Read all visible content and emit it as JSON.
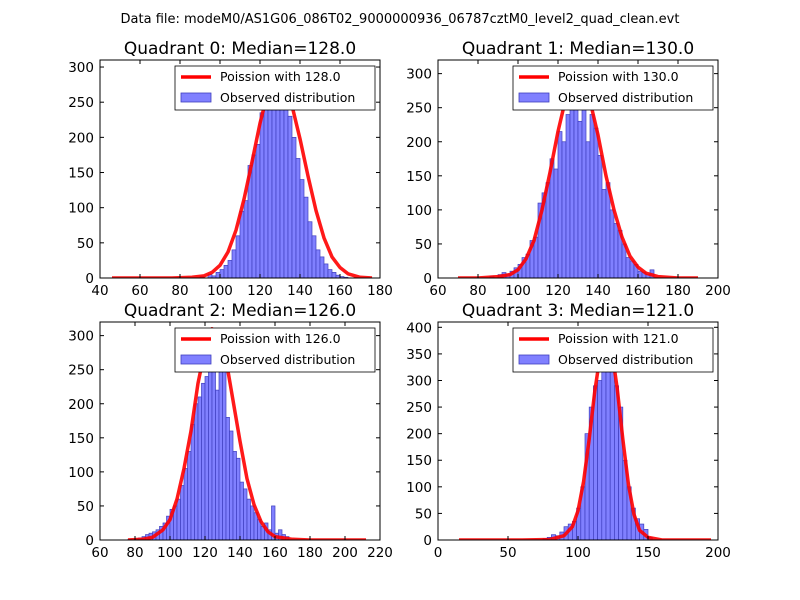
{
  "figure": {
    "suptitle": "Data file: modeM0/AS1G06_086T02_9000000936_06787cztM0_level2_quad_clean.evt"
  },
  "colors": {
    "hist_fill": "#8080ff",
    "hist_edge": "#3f3fbf",
    "curve": "#ff0000"
  },
  "chart_data": [
    {
      "type": "bar",
      "panel": "top-left",
      "title": "Quadrant 0: Median=128.0",
      "xlim": [
        40,
        180
      ],
      "ylim": [
        0,
        310
      ],
      "xticks": [
        40,
        60,
        80,
        100,
        120,
        140,
        160,
        180
      ],
      "yticks": [
        0,
        50,
        100,
        150,
        200,
        250,
        300
      ],
      "legend_position": "top-right",
      "legend": {
        "curve": "Poission with 128.0",
        "hist": "Observed distribution"
      },
      "bin_width": 2,
      "hist_x": [
        90,
        92,
        94,
        96,
        98,
        100,
        102,
        104,
        106,
        108,
        110,
        112,
        114,
        116,
        118,
        120,
        122,
        124,
        126,
        128,
        130,
        132,
        134,
        136,
        138,
        140,
        142,
        144,
        146,
        148,
        150,
        152,
        154,
        156,
        158,
        160,
        162
      ],
      "hist_y": [
        2,
        0,
        5,
        3,
        8,
        12,
        18,
        25,
        40,
        60,
        95,
        110,
        160,
        175,
        190,
        235,
        255,
        270,
        240,
        300,
        265,
        295,
        230,
        200,
        170,
        140,
        115,
        80,
        60,
        40,
        30,
        20,
        12,
        8,
        4,
        2,
        1
      ],
      "curve_x": [
        46,
        56,
        66,
        76,
        86,
        92,
        96,
        100,
        104,
        108,
        112,
        116,
        120,
        124,
        128,
        132,
        136,
        140,
        144,
        148,
        152,
        156,
        160,
        164,
        170,
        176
      ],
      "curve_y": [
        0,
        0,
        0,
        0,
        1,
        3,
        8,
        18,
        37,
        68,
        112,
        165,
        220,
        265,
        287,
        277,
        245,
        198,
        145,
        96,
        57,
        30,
        15,
        6,
        1,
        0
      ]
    },
    {
      "type": "bar",
      "panel": "top-right",
      "title": "Quadrant 1: Median=130.0",
      "xlim": [
        60,
        200
      ],
      "ylim": [
        0,
        320
      ],
      "xticks": [
        60,
        80,
        100,
        120,
        140,
        160,
        180,
        200
      ],
      "yticks": [
        0,
        50,
        100,
        150,
        200,
        250,
        300
      ],
      "legend_position": "top-right",
      "legend": {
        "curve": "Poission with 130.0",
        "hist": "Observed distribution"
      },
      "bin_width": 2,
      "hist_x": [
        86,
        88,
        90,
        92,
        94,
        96,
        98,
        100,
        102,
        104,
        106,
        108,
        110,
        112,
        114,
        116,
        118,
        120,
        122,
        124,
        126,
        128,
        130,
        132,
        134,
        136,
        138,
        140,
        142,
        144,
        146,
        148,
        150,
        152,
        154,
        156,
        158,
        160,
        162,
        164,
        166
      ],
      "hist_y": [
        3,
        0,
        5,
        8,
        6,
        10,
        15,
        20,
        30,
        35,
        55,
        60,
        110,
        125,
        140,
        175,
        160,
        215,
        200,
        240,
        270,
        300,
        230,
        300,
        200,
        240,
        220,
        180,
        130,
        140,
        100,
        80,
        70,
        50,
        30,
        25,
        20,
        10,
        8,
        5,
        12
      ],
      "curve_x": [
        70,
        80,
        90,
        96,
        100,
        104,
        108,
        112,
        116,
        120,
        124,
        128,
        132,
        136,
        140,
        144,
        148,
        152,
        156,
        160,
        164,
        170,
        180,
        190
      ],
      "curve_y": [
        0,
        0,
        2,
        5,
        12,
        28,
        55,
        100,
        155,
        215,
        265,
        293,
        290,
        260,
        210,
        150,
        100,
        60,
        32,
        16,
        7,
        2,
        0,
        0
      ]
    },
    {
      "type": "bar",
      "panel": "bottom-left",
      "title": "Quadrant 2: Median=126.0",
      "xlim": [
        60,
        220
      ],
      "ylim": [
        0,
        320
      ],
      "xticks": [
        60,
        80,
        100,
        120,
        140,
        160,
        180,
        200,
        220
      ],
      "yticks": [
        0,
        50,
        100,
        150,
        200,
        250,
        300
      ],
      "legend_position": "top-right",
      "legend": {
        "curve": "Poission with 126.0",
        "hist": "Observed distribution"
      },
      "bin_width": 2,
      "hist_x": [
        76,
        78,
        80,
        82,
        84,
        86,
        88,
        90,
        92,
        94,
        96,
        98,
        100,
        102,
        104,
        106,
        108,
        110,
        112,
        114,
        116,
        118,
        120,
        122,
        124,
        126,
        128,
        130,
        132,
        134,
        136,
        138,
        140,
        142,
        144,
        146,
        148,
        150,
        152,
        154,
        156,
        158,
        160,
        162,
        164,
        166
      ],
      "hist_y": [
        1,
        0,
        2,
        3,
        5,
        8,
        10,
        12,
        15,
        20,
        25,
        35,
        45,
        50,
        60,
        80,
        105,
        130,
        170,
        200,
        210,
        230,
        240,
        280,
        290,
        220,
        300,
        270,
        180,
        160,
        130,
        120,
        85,
        75,
        60,
        50,
        40,
        30,
        20,
        25,
        15,
        50,
        10,
        15,
        8,
        5
      ],
      "curve_x": [
        76,
        84,
        90,
        96,
        100,
        104,
        108,
        112,
        116,
        120,
        124,
        128,
        132,
        136,
        140,
        144,
        148,
        152,
        156,
        160,
        170,
        180,
        200,
        212
      ],
      "curve_y": [
        0,
        1,
        4,
        15,
        30,
        60,
        105,
        160,
        230,
        280,
        310,
        300,
        265,
        205,
        145,
        90,
        52,
        27,
        12,
        5,
        1,
        0,
        0,
        0
      ]
    },
    {
      "type": "bar",
      "panel": "bottom-right",
      "title": "Quadrant 3: Median=121.0",
      "xlim": [
        0,
        200
      ],
      "ylim": [
        0,
        410
      ],
      "xticks": [
        0,
        50,
        100,
        150,
        200
      ],
      "yticks": [
        0,
        50,
        100,
        150,
        200,
        250,
        300,
        350,
        400
      ],
      "legend_position": "top-right",
      "legend": {
        "curve": "Poission with 121.0",
        "hist": "Observed distribution"
      },
      "bin_width": 3,
      "hist_x": [
        75,
        78,
        81,
        84,
        87,
        90,
        93,
        96,
        99,
        102,
        105,
        108,
        111,
        114,
        117,
        120,
        123,
        126,
        129,
        132,
        135,
        138,
        141,
        144,
        147,
        150
      ],
      "hist_y": [
        3,
        5,
        10,
        8,
        15,
        25,
        30,
        35,
        60,
        100,
        200,
        250,
        290,
        300,
        370,
        330,
        350,
        290,
        250,
        150,
        100,
        60,
        40,
        30,
        20,
        5
      ],
      "curve_x": [
        15,
        40,
        60,
        80,
        90,
        96,
        100,
        104,
        108,
        112,
        116,
        120,
        124,
        128,
        132,
        136,
        140,
        144,
        150,
        160,
        175,
        195
      ],
      "curve_y": [
        0,
        0,
        0,
        1,
        8,
        25,
        55,
        110,
        190,
        280,
        350,
        385,
        360,
        285,
        190,
        105,
        48,
        18,
        5,
        0,
        0,
        0
      ]
    }
  ]
}
